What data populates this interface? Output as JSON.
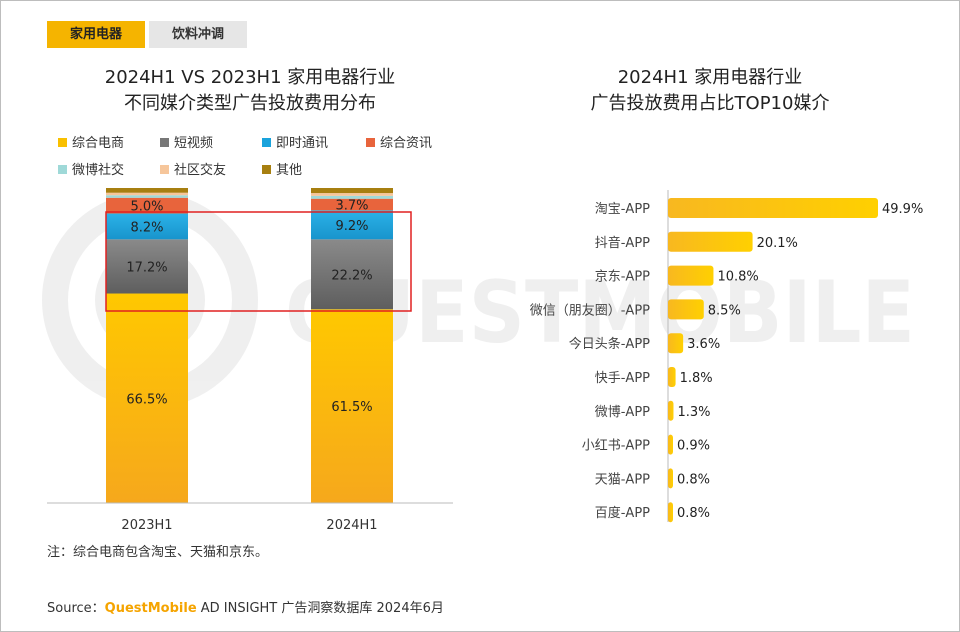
{
  "tabs": [
    {
      "label": "家用电器",
      "active": true
    },
    {
      "label": "饮料冲调",
      "active": false
    }
  ],
  "left_title": [
    "2024H1 VS 2023H1 家用电器行业",
    "不同媒介类型广告投放费用分布"
  ],
  "right_title": [
    "2024H1 家用电器行业",
    "广告投放费用占比TOP10媒介"
  ],
  "legend": [
    {
      "name": "综合电商",
      "color": "#f9c000"
    },
    {
      "name": "短视频",
      "color": "#777777"
    },
    {
      "name": "即时通讯",
      "color": "#1aa3dc"
    },
    {
      "name": "综合资讯",
      "color": "#e8643c"
    },
    {
      "name": "微博社交",
      "color": "#9fd9d8"
    },
    {
      "name": "社区交友",
      "color": "#f6c69b"
    },
    {
      "name": "其他",
      "color": "#a77f10"
    }
  ],
  "note": "注：综合电商包含淘宝、天猫和京东。",
  "source": {
    "prefix": "Source：",
    "brand": "QuestMobile",
    "rest": " AD INSIGHT 广告洞察数据库 2024年6月"
  },
  "watermark": "QUESTMOBILE",
  "chart_data": [
    {
      "type": "bar",
      "stacked": true,
      "categories": [
        "2023H1",
        "2024H1"
      ],
      "series": [
        {
          "name": "综合电商",
          "values": [
            66.5,
            61.5
          ],
          "labels": [
            "66.5%",
            "61.5%"
          ]
        },
        {
          "name": "短视频",
          "values": [
            17.2,
            22.2
          ],
          "labels": [
            "17.2%",
            "22.2%"
          ]
        },
        {
          "name": "即时通讯",
          "values": [
            8.2,
            9.2
          ],
          "labels": [
            "8.2%",
            "9.2%"
          ]
        },
        {
          "name": "综合资讯",
          "values": [
            5.0,
            3.7
          ],
          "labels": [
            "5.0%",
            "3.7%"
          ]
        },
        {
          "name": "微博社交",
          "values": [
            0.8,
            0.9
          ],
          "labels": [
            "",
            ""
          ]
        },
        {
          "name": "社区交友",
          "values": [
            0.8,
            0.9
          ],
          "labels": [
            "",
            ""
          ]
        },
        {
          "name": "其他",
          "values": [
            1.5,
            1.6
          ],
          "labels": [
            "",
            ""
          ]
        }
      ],
      "ylim": [
        0,
        100
      ],
      "legend": "top-left",
      "highlight": {
        "series": [
          "短视频",
          "即时通讯"
        ],
        "color": "#e02020"
      }
    },
    {
      "type": "bar",
      "orientation": "horizontal",
      "categories": [
        "淘宝-APP",
        "抖音-APP",
        "京东-APP",
        "微信（朋友圈）-APP",
        "今日头条-APP",
        "快手-APP",
        "微博-APP",
        "小红书-APP",
        "天猫-APP",
        "百度-APP"
      ],
      "values": [
        49.9,
        20.1,
        10.8,
        8.5,
        3.6,
        1.8,
        1.3,
        0.9,
        0.8,
        0.8
      ],
      "labels": [
        "49.9%",
        "20.1%",
        "10.8%",
        "8.5%",
        "3.6%",
        "1.8%",
        "1.3%",
        "0.9%",
        "0.8%",
        "0.8%"
      ],
      "xlim": [
        0,
        55
      ]
    }
  ]
}
